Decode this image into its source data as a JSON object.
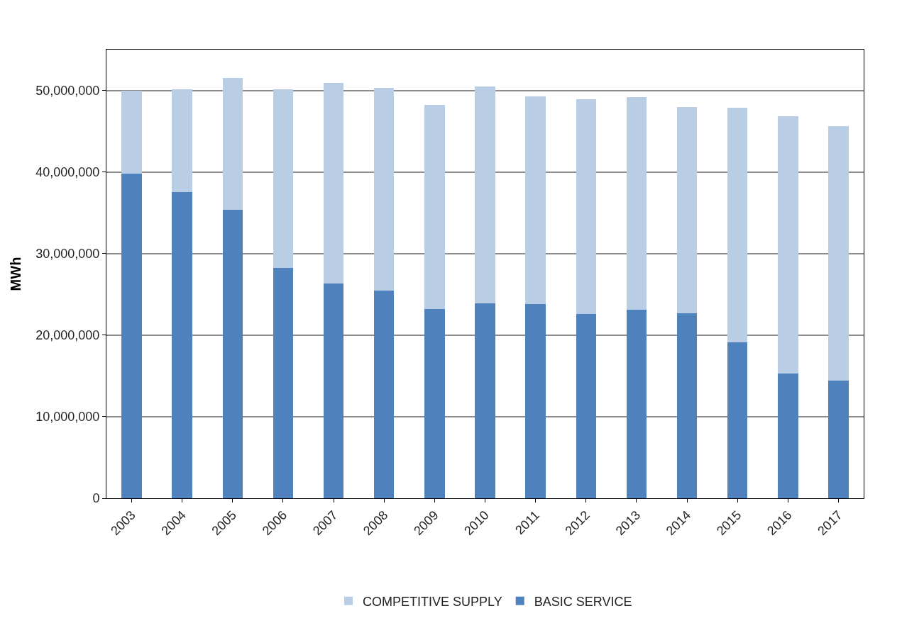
{
  "chart_data": {
    "type": "bar",
    "stacked": true,
    "ylabel": "MWh",
    "categories": [
      "2003",
      "2004",
      "2005",
      "2006",
      "2007",
      "2008",
      "2009",
      "2010",
      "2011",
      "2012",
      "2013",
      "2014",
      "2015",
      "2016",
      "2017"
    ],
    "series": [
      {
        "name": "BASIC SERVICE",
        "color": "#4f81bd",
        "values": [
          39800000,
          37500000,
          35400000,
          28200000,
          26300000,
          25500000,
          23200000,
          23900000,
          23800000,
          22600000,
          23100000,
          22700000,
          19100000,
          15300000,
          14400000
        ]
      },
      {
        "name": "COMPETITIVE SUPPLY",
        "color": "#b9cde5",
        "values": [
          10200000,
          12600000,
          16100000,
          21900000,
          24600000,
          24800000,
          25000000,
          26600000,
          25500000,
          26300000,
          26100000,
          25300000,
          28800000,
          31500000,
          31200000
        ]
      }
    ],
    "ylim": [
      0,
      55000000
    ],
    "yticks": [
      0,
      {
        "value": 10000000,
        "label": "10,000,000"
      },
      {
        "value": 20000000,
        "label": "20,000,000"
      },
      {
        "value": 30000000,
        "label": "30,000,000"
      },
      {
        "value": 40000000,
        "label": "40,000,000"
      },
      {
        "value": 50000000,
        "label": "50,000,000"
      }
    ],
    "grid": "y",
    "legend": "bottom"
  }
}
